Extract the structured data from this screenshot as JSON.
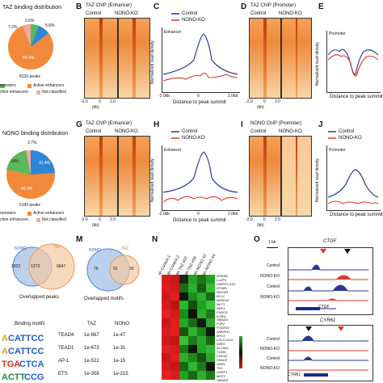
{
  "panels": {
    "A": {
      "title": "TAZ binding distribution",
      "pct_top": "2.6%",
      "pct_small1": "7.2%",
      "pct_small2": "5.6%",
      "pct_big": "84.4%",
      "count": "8120 peaks",
      "legend1": "romoters",
      "legend2": "Active enhancers",
      "legend3": "ctive enhancers",
      "legend4": "Not classified"
    },
    "B": {
      "letter": "B",
      "title": "TAZ ChIP (Enhancer)",
      "col1": "Control",
      "col2": "NONO-KO"
    },
    "C": {
      "letter": "C",
      "legend1": "Control",
      "legend2": "NONO-KO",
      "region": "Enhancer",
      "xlabel": "Distance to peak summit"
    },
    "D": {
      "letter": "D",
      "title": "TAZ ChIP (Promoter)",
      "col1": "Control",
      "col2": "NONO-KO"
    },
    "E": {
      "letter": "E",
      "region": "Promoter",
      "xlabel": "Distance to peak summit"
    },
    "F": {
      "title": "NONO binding distribution",
      "pct_top": "3.7%",
      "pct_left": "15%",
      "pct_right": "31.4%",
      "pct_big": "49.9%",
      "count": "5195 peaks",
      "legend1": "romoters",
      "legend2": "Active enhancers",
      "legend3": "ctive enhancers",
      "legend4": "Not classified"
    },
    "G": {
      "letter": "G",
      "title": "TAZ ChIP (Enhancer)",
      "col1": "Control",
      "col2": "NONO-KO"
    },
    "H": {
      "letter": "H",
      "legend1": "Control",
      "legend2": "NONO-KO",
      "region": "Enhancer",
      "xlabel": "Distance to peak summit"
    },
    "I": {
      "letter": "I",
      "title": "NONO ChIP (Promoter)",
      "col1": "Control",
      "col2": "NONO-KO"
    },
    "J": {
      "letter": "J",
      "legend1": "Control",
      "legend2": "NONO-KO",
      "region": "Promoter",
      "xlabel": "Distance to peak summit"
    },
    "L": {
      "nono": "NONO",
      "taz": "TAZ",
      "left": "3922",
      "mid": "1273",
      "right": "6847",
      "caption": "Overlapped peaks"
    },
    "M": {
      "letter": "M",
      "nono": "NONO",
      "taz": "TAZ",
      "left": "76",
      "mid": "91",
      "right": "30",
      "caption": "Overlapped motifs"
    },
    "N": {
      "letter": "N"
    },
    "O": {
      "letter": "O",
      "gene1": "CTGF",
      "gene2": "CYR61",
      "scale": "1 kb",
      "row1": "Control",
      "row2": "NONO-KO",
      "row3": "Control",
      "row4": "NONO-KO"
    }
  },
  "axis_ticks": {
    "t1": "-2.0",
    "t2": "0",
    "t3": "2.0",
    "unit": "(kb)",
    "x1": "-2.0kb",
    "x2": "0",
    "x3": "2.0kb",
    "ylabel": "Normalized read density"
  },
  "motifs": {
    "header": [
      "Binding motifs",
      "TAZ",
      "NONO"
    ],
    "rows": [
      {
        "name": "TEAD4",
        "taz": "1e-867",
        "nono": "1e-47"
      },
      {
        "name": "TEAD1",
        "taz": "1e-673",
        "nono": "1e-31"
      },
      {
        "name": "AP-1",
        "taz": "1e-522",
        "nono": "1e-15"
      },
      {
        "name": "ETS",
        "taz": "1e-308",
        "nono": "1e-215"
      }
    ]
  },
  "heatmap": {
    "columns": [
      "sh-Control-1",
      "sh-Control-2",
      "sh-TAZ #07",
      "sh-TAZ #09",
      "sh-NONO #2",
      "sh-NONO #4"
    ],
    "genes": [
      "GREM2",
      "LUZP1",
      "DIAPH3-AS1",
      "EPHB1",
      "NECDR",
      "BCL2",
      "NR5D1Z",
      "MLF1",
      "NRP1",
      "FNDC5",
      "IL2RG",
      "SMAD4",
      "FGF2",
      "PTGER2",
      "ANKRD1",
      "MYL9",
      "LRCC1224",
      "GBR2",
      "SLC9A1",
      "TGMS",
      "CDKN2",
      "FANCE",
      "GBR1",
      "TK1",
      "UHRF1",
      "MCF2",
      "SMADS"
    ]
  },
  "colors": {
    "control": "#2b3a8c",
    "nonoko": "#d93a2b",
    "orange": "#f08a3a",
    "blue": "#2e86d8",
    "pink": "#f4a7a0",
    "green": "#5cb85c"
  }
}
